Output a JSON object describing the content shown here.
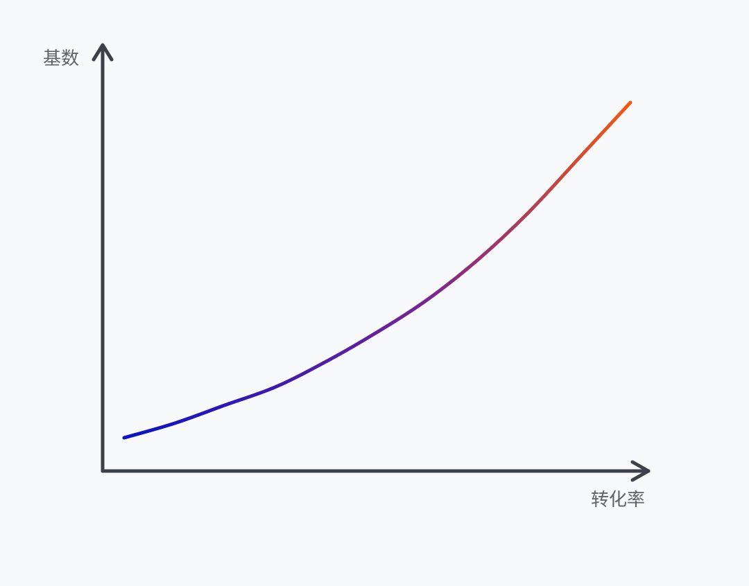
{
  "chart_data": {
    "type": "line",
    "title": "",
    "xlabel": "转化率",
    "ylabel": "基数",
    "ticks_shown": false,
    "grid": false,
    "legend": "none",
    "curve_shape": "exponential-growth",
    "x": [
      0,
      0.1,
      0.2,
      0.3,
      0.4,
      0.5,
      0.6,
      0.7,
      0.8,
      0.9,
      1.0
    ],
    "y": [
      0.08,
      0.12,
      0.17,
      0.22,
      0.29,
      0.37,
      0.46,
      0.57,
      0.7,
      0.85,
      1.0
    ],
    "xlim": [
      -0.04,
      1.04
    ],
    "ylim": [
      -0.11,
      1.17
    ],
    "colors": {
      "background": "#f8f9fa",
      "axis": "#3c4048",
      "label": "#5f6368",
      "gradient_start": "#0a12c8",
      "gradient_mid": "#7a2690",
      "gradient_end": "#f25a10"
    }
  }
}
